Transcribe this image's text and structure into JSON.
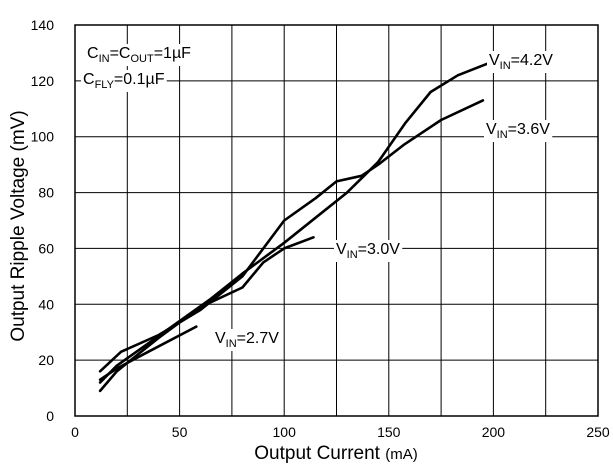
{
  "chart_data": {
    "type": "line",
    "xlabel": "Output Current",
    "xlabel_unit": "(mA)",
    "ylabel": "Output Ripple Voltage (mV)",
    "xlim": [
      0,
      250
    ],
    "ylim": [
      0,
      140
    ],
    "x_ticks": [
      0,
      50,
      100,
      150,
      200,
      250
    ],
    "y_ticks": [
      0,
      20,
      40,
      60,
      80,
      100,
      120,
      140
    ],
    "grid": true,
    "conditions": [
      {
        "parts": [
          {
            "t": "C",
            "sub": false
          },
          {
            "t": "IN",
            "sub": true
          },
          {
            "t": "=C",
            "sub": false
          },
          {
            "t": "OUT",
            "sub": true
          },
          {
            "t": "=1µF",
            "sub": false
          }
        ]
      },
      {
        "parts": [
          {
            "t": "C",
            "sub": false
          },
          {
            "t": "FLY",
            "sub": true
          },
          {
            "t": "=0.1µF",
            "sub": false
          }
        ]
      }
    ],
    "series": [
      {
        "name_parts": [
          {
            "t": "V",
            "sub": false
          },
          {
            "t": "IN",
            "sub": true
          },
          {
            "t": "=4.2V",
            "sub": false
          }
        ],
        "x": [
          12,
          20,
          35,
          50,
          65,
          80,
          100,
          115,
          130,
          145,
          158,
          170,
          183,
          200
        ],
        "y": [
          12,
          18,
          26,
          34,
          42,
          51,
          62,
          71,
          80,
          91,
          105,
          116,
          122,
          127
        ]
      },
      {
        "name_parts": [
          {
            "t": "V",
            "sub": false
          },
          {
            "t": "IN",
            "sub": true
          },
          {
            "t": "=3.6V",
            "sub": false
          }
        ],
        "x": [
          12,
          22,
          40,
          60,
          80,
          100,
          115,
          125,
          137,
          145,
          157,
          175,
          195
        ],
        "y": [
          16,
          23,
          29,
          38,
          50,
          70,
          78,
          84,
          86,
          90,
          97,
          106,
          113
        ]
      },
      {
        "name_parts": [
          {
            "t": "V",
            "sub": false
          },
          {
            "t": "IN",
            "sub": true
          },
          {
            "t": "=3.0V",
            "sub": false
          }
        ],
        "x": [
          12,
          20,
          40,
          60,
          80,
          90,
          100,
          114
        ],
        "y": [
          9,
          16,
          28,
          39,
          46,
          55,
          60,
          64
        ]
      },
      {
        "name_parts": [
          {
            "t": "V",
            "sub": false
          },
          {
            "t": "IN",
            "sub": true
          },
          {
            "t": "=2.7V",
            "sub": false
          }
        ],
        "x": [
          12,
          20,
          35,
          58
        ],
        "y": [
          13,
          17,
          23,
          32
        ]
      }
    ]
  }
}
